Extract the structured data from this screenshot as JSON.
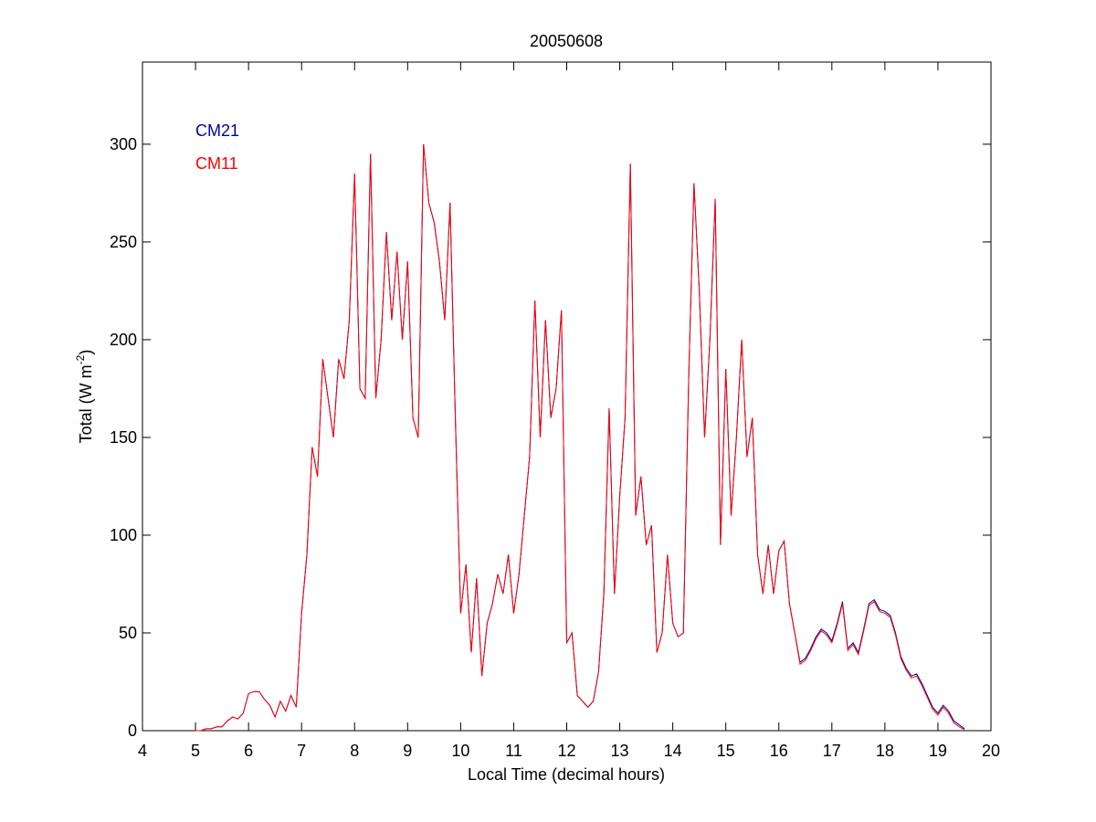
{
  "chart_data": {
    "type": "line",
    "title": "20050608",
    "xlabel": "Local Time (decimal hours)",
    "ylabel": [
      "Total (W m",
      "-2",
      ")"
    ],
    "x": [
      5,
      5.1,
      5.2,
      5.3,
      5.4,
      5.5,
      5.6,
      5.7,
      5.8,
      5.9,
      6,
      6.1,
      6.2,
      6.3,
      6.4,
      6.5,
      6.6,
      6.7,
      6.8,
      6.9,
      7,
      7.1,
      7.2,
      7.3,
      7.4,
      7.5,
      7.6,
      7.7,
      7.8,
      7.9,
      8,
      8.1,
      8.2,
      8.3,
      8.4,
      8.5,
      8.6,
      8.7,
      8.8,
      8.9,
      9,
      9.1,
      9.2,
      9.3,
      9.4,
      9.5,
      9.6,
      9.7,
      9.8,
      9.9,
      10,
      10.1,
      10.2,
      10.3,
      10.4,
      10.5,
      10.6,
      10.7,
      10.8,
      10.9,
      11,
      11.1,
      11.2,
      11.3,
      11.4,
      11.5,
      11.6,
      11.7,
      11.8,
      11.9,
      12,
      12.1,
      12.2,
      12.3,
      12.4,
      12.5,
      12.6,
      12.7,
      12.8,
      12.9,
      13,
      13.1,
      13.2,
      13.3,
      13.4,
      13.5,
      13.6,
      13.7,
      13.8,
      13.9,
      14,
      14.1,
      14.2,
      14.3,
      14.4,
      14.5,
      14.6,
      14.7,
      14.8,
      14.9,
      15,
      15.1,
      15.2,
      15.3,
      15.4,
      15.5,
      15.6,
      15.7,
      15.8,
      15.9,
      16,
      16.1,
      16.2,
      16.3,
      16.4,
      16.5,
      16.6,
      16.7,
      16.8,
      16.9,
      17,
      17.1,
      17.2,
      17.3,
      17.4,
      17.5,
      17.6,
      17.7,
      17.8,
      17.9,
      18,
      18.1,
      18.2,
      18.3,
      18.4,
      18.5,
      18.6,
      18.7,
      18.8,
      18.9,
      19,
      19.1,
      19.2,
      19.3,
      19.4,
      19.5
    ],
    "series": [
      {
        "name": "CM21",
        "color": "#0000aa",
        "values": [
          0,
          0,
          1,
          1,
          2,
          2,
          5,
          7,
          6,
          9,
          19,
          20,
          20,
          16,
          13,
          7,
          15,
          10,
          18,
          12,
          60,
          90,
          145,
          130,
          190,
          170,
          150,
          190,
          180,
          210,
          285,
          175,
          170,
          295,
          170,
          200,
          255,
          210,
          245,
          200,
          240,
          160,
          150,
          300,
          270,
          260,
          240,
          210,
          270,
          160,
          60,
          85,
          40,
          78,
          28,
          55,
          65,
          80,
          70,
          90,
          60,
          80,
          110,
          140,
          220,
          150,
          210,
          160,
          175,
          215,
          45,
          50,
          18,
          15,
          12,
          15,
          30,
          70,
          165,
          70,
          120,
          160,
          290,
          110,
          130,
          95,
          105,
          40,
          50,
          90,
          55,
          48,
          50,
          180,
          280,
          225,
          150,
          200,
          272,
          95,
          185,
          110,
          150,
          200,
          140,
          160,
          90,
          70,
          95,
          70,
          92,
          97,
          65,
          50,
          35,
          37,
          42,
          48,
          52,
          50,
          46,
          55,
          66,
          42,
          45,
          40,
          52,
          65,
          67,
          62,
          61,
          59,
          50,
          38,
          32,
          28,
          29,
          24,
          18,
          12,
          9,
          13,
          10,
          5,
          3,
          1
        ]
      },
      {
        "name": "CM11",
        "color": "#ff0000",
        "values": [
          0,
          0,
          1,
          1,
          2,
          2,
          5,
          7,
          6,
          9,
          19,
          20,
          20,
          16,
          13,
          7,
          15,
          10,
          18,
          12,
          60,
          90,
          145,
          130,
          190,
          170,
          150,
          190,
          180,
          210,
          285,
          175,
          170,
          295,
          170,
          200,
          255,
          210,
          245,
          200,
          240,
          160,
          150,
          300,
          270,
          260,
          240,
          210,
          270,
          160,
          60,
          85,
          40,
          78,
          28,
          55,
          65,
          80,
          70,
          90,
          60,
          80,
          110,
          140,
          220,
          150,
          210,
          160,
          175,
          215,
          45,
          50,
          18,
          15,
          12,
          15,
          30,
          70,
          165,
          70,
          120,
          160,
          290,
          110,
          130,
          95,
          105,
          40,
          50,
          90,
          55,
          48,
          50,
          180,
          280,
          225,
          150,
          200,
          272,
          95,
          185,
          110,
          150,
          200,
          140,
          160,
          90,
          70,
          95,
          70,
          92,
          97,
          65,
          50,
          34,
          36,
          41,
          47,
          51,
          49,
          45,
          54,
          65,
          41,
          44,
          39,
          51,
          64,
          66,
          61,
          60,
          58,
          49,
          37,
          31,
          27,
          28,
          23,
          17,
          11,
          8,
          12,
          9,
          4,
          2,
          0.5
        ]
      }
    ],
    "xlim": [
      4,
      20
    ],
    "xticks": [
      4,
      5,
      6,
      7,
      8,
      9,
      10,
      11,
      12,
      13,
      14,
      15,
      16,
      17,
      18,
      19,
      20
    ],
    "ylim": [
      0,
      342
    ],
    "yticks": [
      0,
      50,
      100,
      150,
      200,
      250,
      300
    ],
    "grid": false
  }
}
